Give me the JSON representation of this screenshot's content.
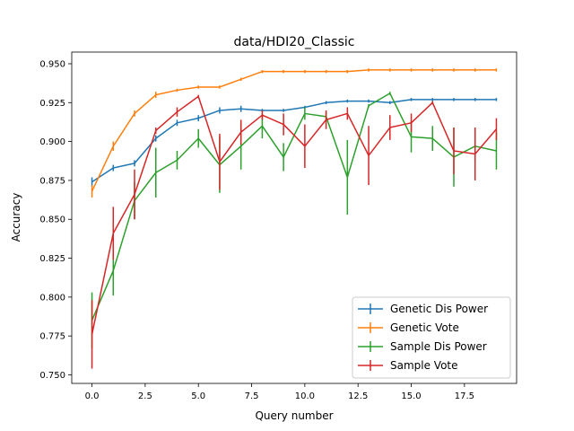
{
  "chart_data": {
    "type": "line",
    "title": "data/HDI20_Classic",
    "xlabel": "Query number",
    "ylabel": "Accuracy",
    "xlim": [
      -0.95,
      19.95
    ],
    "ylim": [
      0.7445,
      0.9575
    ],
    "xticks": [
      0.0,
      2.5,
      5.0,
      7.5,
      10.0,
      12.5,
      15.0,
      17.5
    ],
    "xtick_labels": [
      "0.0",
      "2.5",
      "5.0",
      "7.5",
      "10.0",
      "12.5",
      "15.0",
      "17.5"
    ],
    "yticks": [
      0.75,
      0.775,
      0.8,
      0.825,
      0.85,
      0.875,
      0.9,
      0.925,
      0.95
    ],
    "ytick_labels": [
      "0.750",
      "0.775",
      "0.800",
      "0.825",
      "0.850",
      "0.875",
      "0.900",
      "0.925",
      "0.950"
    ],
    "legend_position": "lower-right",
    "grid": false,
    "x": [
      0,
      1,
      2,
      3,
      4,
      5,
      6,
      7,
      8,
      9,
      10,
      11,
      12,
      13,
      14,
      15,
      16,
      17,
      18,
      19
    ],
    "series": [
      {
        "name": "Genetic Dis Power",
        "color": "#1f77b4",
        "values": [
          0.874,
          0.883,
          0.886,
          0.902,
          0.912,
          0.915,
          0.92,
          0.921,
          0.92,
          0.92,
          0.922,
          0.925,
          0.926,
          0.926,
          0.925,
          0.927,
          0.927,
          0.927,
          0.927,
          0.927
        ],
        "errors": [
          0.003,
          0.002,
          0.002,
          0.002,
          0.002,
          0.002,
          0.002,
          0.002,
          0.001,
          0.001,
          0.001,
          0.001,
          0.001,
          0.001,
          0.001,
          0.001,
          0.001,
          0.001,
          0.001,
          0.001
        ]
      },
      {
        "name": "Genetic Vote",
        "color": "#ff7f0e",
        "values": [
          0.868,
          0.897,
          0.918,
          0.93,
          0.933,
          0.935,
          0.935,
          0.94,
          0.945,
          0.945,
          0.945,
          0.945,
          0.945,
          0.946,
          0.946,
          0.946,
          0.946,
          0.946,
          0.946,
          0.946
        ],
        "errors": [
          0.004,
          0.003,
          0.002,
          0.002,
          0.001,
          0.001,
          0.001,
          0.001,
          0.001,
          0.001,
          0.001,
          0.001,
          0.001,
          0.001,
          0.001,
          0.001,
          0.001,
          0.001,
          0.001,
          0.001
        ]
      },
      {
        "name": "Sample Dis Power",
        "color": "#2ca02c",
        "values": [
          0.785,
          0.817,
          0.862,
          0.88,
          0.888,
          0.902,
          0.885,
          0.897,
          0.91,
          0.89,
          0.918,
          0.916,
          0.877,
          0.923,
          0.931,
          0.903,
          0.902,
          0.89,
          0.897,
          0.894
        ],
        "errors": [
          0.018,
          0.016,
          0.012,
          0.016,
          0.006,
          0.006,
          0.018,
          0.015,
          0.008,
          0.009,
          0.004,
          0.003,
          0.024,
          0.001,
          0.001,
          0.01,
          0.008,
          0.019,
          0.01,
          0.012
        ]
      },
      {
        "name": "Sample Vote",
        "color": "#d62728",
        "values": [
          0.776,
          0.841,
          0.866,
          0.907,
          0.919,
          0.929,
          0.887,
          0.906,
          0.917,
          0.911,
          0.897,
          0.914,
          0.918,
          0.891,
          0.909,
          0.912,
          0.925,
          0.894,
          0.892,
          0.908
        ],
        "errors": [
          0.022,
          0.017,
          0.016,
          0.002,
          0.003,
          0.001,
          0.018,
          0.008,
          0.003,
          0.007,
          0.014,
          0.006,
          0.004,
          0.019,
          0.008,
          0.006,
          0.001,
          0.015,
          0.017,
          0.007
        ]
      }
    ]
  }
}
